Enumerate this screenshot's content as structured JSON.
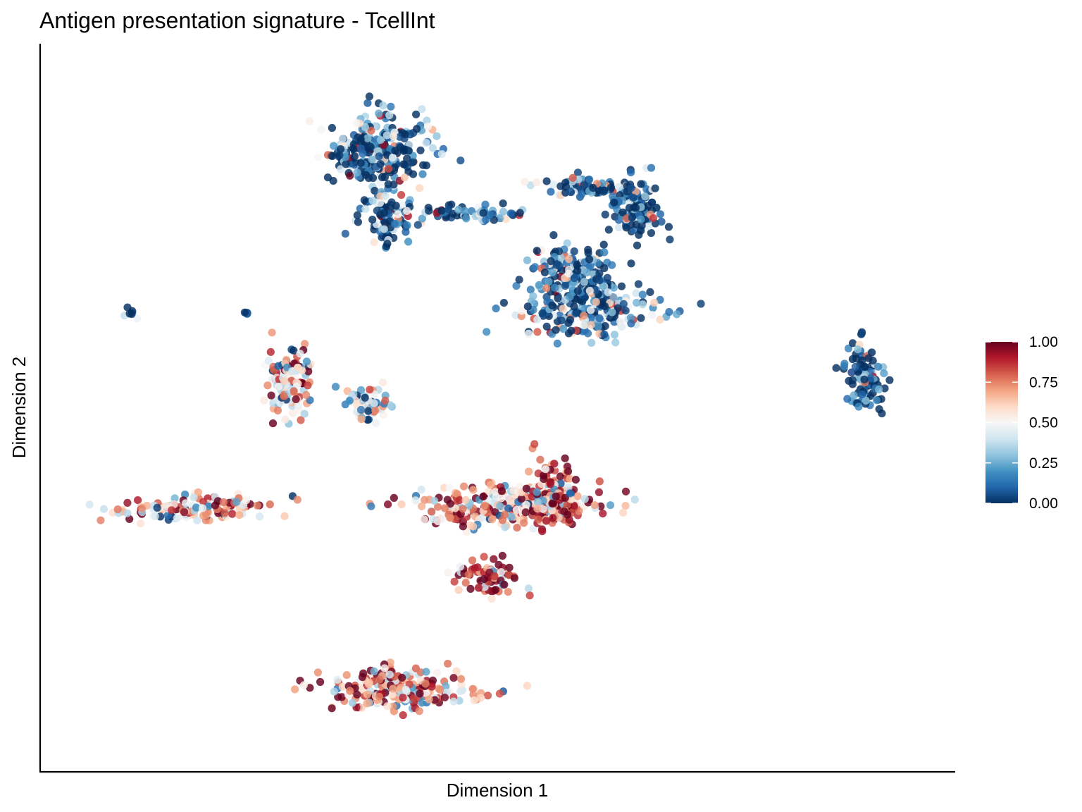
{
  "chart_data": {
    "type": "scatter",
    "title": "Antigen presentation signature - TcellInt",
    "xlabel": "Dimension 1",
    "ylabel": "Dimension 2",
    "xlim": [
      0,
      100
    ],
    "ylim": [
      0,
      100
    ],
    "grid": false,
    "axis_ticks": false,
    "color_scale": {
      "name": "RdBu (reversed)",
      "min": 0.0,
      "max": 1.0,
      "ticks": [
        1.0,
        0.75,
        0.5,
        0.25,
        0.0
      ],
      "tick_labels": [
        "1.00",
        "0.75",
        "0.50",
        "0.25",
        "0.00"
      ],
      "stops": [
        "#053061",
        "#2166ac",
        "#4393c3",
        "#92c5de",
        "#d1e5f0",
        "#f7f7f7",
        "#fddbc7",
        "#f4a582",
        "#d6604d",
        "#b2182b",
        "#67001f"
      ]
    },
    "legend_position": "right",
    "clusters": [
      {
        "name": "top-left large cluster",
        "center": [
          36.0,
          87.5
        ],
        "spread": [
          6.0,
          5.5
        ],
        "mean_score": 0.06
      },
      {
        "name": "top-left cluster lower lobe",
        "center": [
          36.5,
          77.5
        ],
        "spread": [
          3.0,
          3.5
        ],
        "mean_score": 0.08
      },
      {
        "name": "bridge strand",
        "center": [
          47.0,
          78.5
        ],
        "spread": [
          6.0,
          1.2
        ],
        "mean_score": 0.05
      },
      {
        "name": "loop right arm",
        "center": [
          65.5,
          79.5
        ],
        "spread": [
          3.0,
          4.5
        ],
        "mean_score": 0.05
      },
      {
        "name": "loop top arc",
        "center": [
          59.5,
          82.5
        ],
        "spread": [
          5.0,
          1.5
        ],
        "mean_score": 0.05
      },
      {
        "name": "central right cluster",
        "center": [
          60.0,
          64.5
        ],
        "spread": [
          7.5,
          4.0
        ],
        "mean_score": 0.12
      },
      {
        "name": "central cluster upper",
        "center": [
          58.5,
          70.5
        ],
        "spread": [
          4.5,
          3.0
        ],
        "mean_score": 0.12
      },
      {
        "name": "far-right cluster",
        "center": [
          92.5,
          54.5
        ],
        "spread": [
          2.5,
          4.8
        ],
        "mean_score": 0.04
      },
      {
        "name": "small left blob",
        "center": [
          7.0,
          63.5
        ],
        "spread": [
          1.0,
          0.8
        ],
        "mean_score": 0.1
      },
      {
        "name": "tiny left dot",
        "center": [
          20.5,
          63.8
        ],
        "spread": [
          0.3,
          0.2
        ],
        "mean_score": 0.02
      },
      {
        "name": "crescent cluster",
        "center": [
          25.5,
          53.5
        ],
        "spread": [
          2.6,
          5.0
        ],
        "mean_score": 0.55
      },
      {
        "name": "small strand",
        "center": [
          34.5,
          50.5
        ],
        "spread": [
          2.5,
          2.5
        ],
        "mean_score": 0.35
      },
      {
        "name": "left streak",
        "center": [
          14.0,
          35.0
        ],
        "spread": [
          9.5,
          1.8
        ],
        "mean_score": 0.6
      },
      {
        "name": "lower central streak",
        "center": [
          51.0,
          35.5
        ],
        "spread": [
          11.0,
          3.0
        ],
        "mean_score": 0.72
      },
      {
        "name": "lower central upper-right",
        "center": [
          56.0,
          37.5
        ],
        "spread": [
          3.0,
          4.5
        ],
        "mean_score": 0.82
      },
      {
        "name": "lower tail",
        "center": [
          48.5,
          25.0
        ],
        "spread": [
          3.5,
          2.5
        ],
        "mean_score": 0.88
      },
      {
        "name": "bottom crescent",
        "center": [
          38.0,
          8.5
        ],
        "spread": [
          8.5,
          3.0
        ],
        "mean_score": 0.7
      }
    ]
  }
}
